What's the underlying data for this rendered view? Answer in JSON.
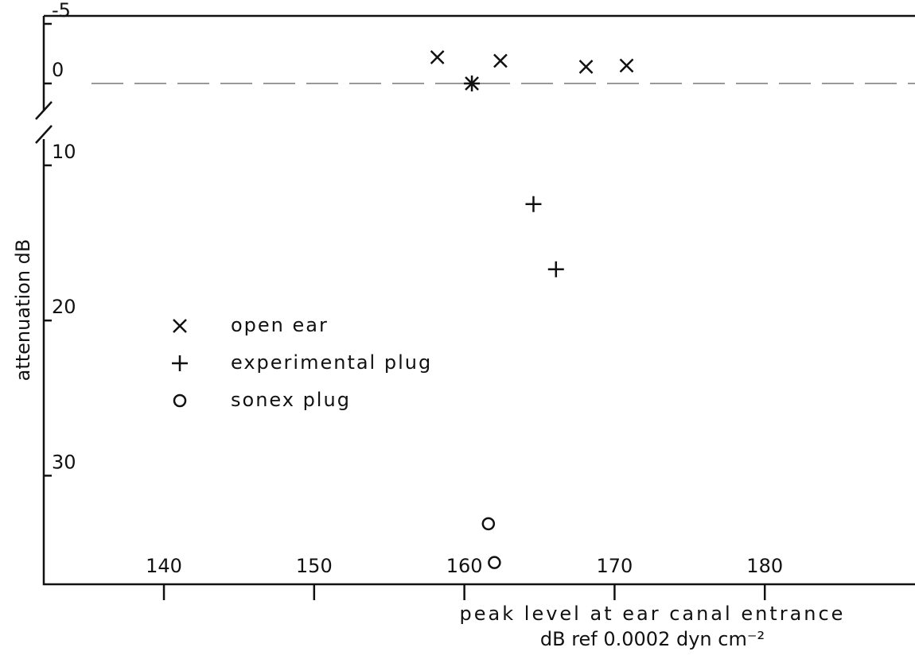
{
  "chart_data": {
    "type": "scatter",
    "x_label": [
      "peak level at ear canal entrance",
      "dB ref 0.0002 dyn cm⁻²"
    ],
    "y_label": "attenuation dB",
    "xlim": [
      132,
      190
    ],
    "xticks": [
      140,
      150,
      160,
      170,
      180
    ],
    "ylim": [
      -5,
      37
    ],
    "yticks": [
      -5,
      0,
      10,
      20,
      30
    ],
    "y_inverted": true,
    "y_axis_break": [
      0,
      10
    ],
    "reference_line": 0,
    "legend": "left",
    "series": [
      {
        "name": "open ear",
        "marker": "x",
        "color": "#111111",
        "x": [
          158.2,
          160.5,
          162.4,
          168.1,
          170.8
        ],
        "values": [
          -2.2,
          0,
          -1.9,
          -1.4,
          -1.5
        ]
      },
      {
        "name": "experimental plug",
        "marker": "+",
        "color": "#111111",
        "x": [
          160.5,
          164.6,
          166.1
        ],
        "values": [
          0,
          12.5,
          16.7
        ]
      },
      {
        "name": "sonex plug",
        "marker": "o",
        "color": "#111111",
        "x": [
          161.6,
          162.0
        ],
        "values": [
          33.1,
          35.6
        ]
      }
    ]
  }
}
